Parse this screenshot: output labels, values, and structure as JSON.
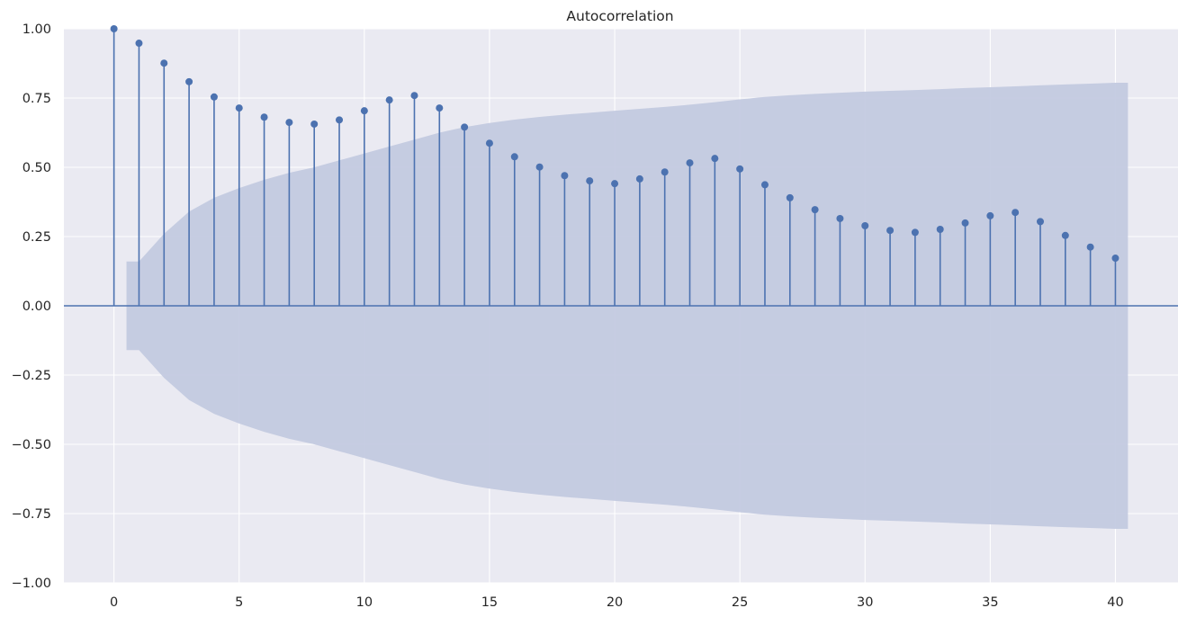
{
  "chart_data": {
    "type": "scatter",
    "subtype": "stem",
    "title": "Autocorrelation",
    "xlabel": "",
    "ylabel": "",
    "xlim": [
      -2,
      42.5
    ],
    "ylim": [
      -1.0,
      1.0
    ],
    "x_ticks": [
      0,
      5,
      10,
      15,
      20,
      25,
      30,
      35,
      40
    ],
    "y_ticks": [
      -1.0,
      -0.75,
      -0.5,
      -0.25,
      0.0,
      0.25,
      0.5,
      0.75,
      1.0
    ],
    "x_tick_labels": [
      "0",
      "5",
      "10",
      "15",
      "20",
      "25",
      "30",
      "35",
      "40"
    ],
    "y_tick_labels": [
      "−1.00",
      "−0.75",
      "−0.50",
      "−0.25",
      "0.00",
      "0.25",
      "0.50",
      "0.75",
      "1.00"
    ],
    "grid": true,
    "series": [
      {
        "x": [
          0,
          1,
          2,
          3,
          4,
          5,
          6,
          7,
          8,
          9,
          10,
          11,
          12,
          13,
          14,
          15,
          16,
          17,
          18,
          19,
          20,
          21,
          22,
          23,
          24,
          25,
          26,
          27,
          28,
          29,
          30,
          31,
          32,
          33,
          34,
          35,
          36,
          37,
          38,
          39,
          40
        ],
        "values": [
          1.0,
          0.948,
          0.876,
          0.809,
          0.754,
          0.714,
          0.681,
          0.662,
          0.656,
          0.671,
          0.704,
          0.743,
          0.759,
          0.714,
          0.645,
          0.587,
          0.538,
          0.501,
          0.47,
          0.451,
          0.441,
          0.458,
          0.483,
          0.516,
          0.532,
          0.494,
          0.437,
          0.39,
          0.347,
          0.315,
          0.289,
          0.272,
          0.265,
          0.276,
          0.299,
          0.325,
          0.337,
          0.304,
          0.254,
          0.212,
          0.172
        ]
      }
    ],
    "confidence_band": {
      "x": [
        0.5,
        1,
        2,
        3,
        4,
        5,
        6,
        7,
        8,
        9,
        10,
        11,
        12,
        13,
        14,
        15,
        16,
        17,
        18,
        19,
        20,
        21,
        22,
        23,
        24,
        25,
        26,
        27,
        28,
        29,
        30,
        31,
        32,
        33,
        34,
        35,
        36,
        37,
        38,
        39,
        40,
        40.5
      ],
      "upper": [
        0.16,
        0.16,
        0.26,
        0.34,
        0.39,
        0.425,
        0.455,
        0.48,
        0.5,
        0.525,
        0.55,
        0.575,
        0.6,
        0.625,
        0.645,
        0.66,
        0.672,
        0.682,
        0.69,
        0.697,
        0.704,
        0.711,
        0.718,
        0.726,
        0.735,
        0.745,
        0.754,
        0.76,
        0.765,
        0.769,
        0.773,
        0.776,
        0.779,
        0.782,
        0.786,
        0.789,
        0.792,
        0.796,
        0.799,
        0.802,
        0.805,
        0.805
      ]
    },
    "colors": {
      "marker": "#4c72b0",
      "band": "#c1c9e0",
      "plot_bg": "#eaeaf2",
      "grid": "#ffffff"
    }
  }
}
